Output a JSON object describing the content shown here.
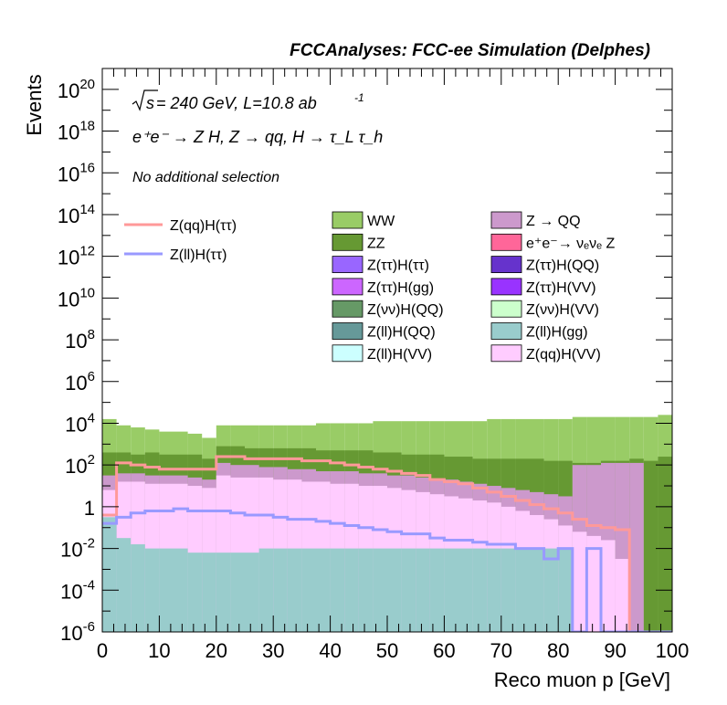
{
  "chart_data": {
    "type": "histogram",
    "title": "FCCAnalyses: FCC-ee Simulation (Delphes)",
    "xlabel": "Reco muon p [GeV]",
    "ylabel": "Events",
    "xlim": [
      0,
      100
    ],
    "ylim": [
      1e-06,
      1e+21
    ],
    "y_scale": "log",
    "bin_width": 2.5,
    "x_ticks": [
      "0",
      "10",
      "20",
      "30",
      "40",
      "50",
      "60",
      "70",
      "80",
      "90",
      "100"
    ],
    "y_ticks": [
      {
        "base": "10",
        "exp": "-6"
      },
      {
        "base": "10",
        "exp": "-4"
      },
      {
        "base": "10",
        "exp": "-2"
      },
      {
        "base": "1",
        "exp": ""
      },
      {
        "base": "10",
        "exp": "2"
      },
      {
        "base": "10",
        "exp": "4"
      },
      {
        "base": "10",
        "exp": "6"
      },
      {
        "base": "10",
        "exp": "8"
      },
      {
        "base": "10",
        "exp": "10"
      },
      {
        "base": "10",
        "exp": "12"
      },
      {
        "base": "10",
        "exp": "14"
      },
      {
        "base": "10",
        "exp": "16"
      },
      {
        "base": "10",
        "exp": "18"
      },
      {
        "base": "10",
        "exp": "20"
      }
    ],
    "annotations": {
      "energy_prefix": "s",
      "energy_text": " = 240 GeV, L=10.8 ab",
      "lumi_exp": "-1",
      "process": "e⁺e⁻ → Z H, Z → qq, H → τ_L τ_h",
      "selection": "No additional selection"
    },
    "legend_lines": [
      {
        "name": "Z(qq)H(ττ)",
        "color": "#ff9999"
      },
      {
        "name": "Z(ll)H(ττ)",
        "color": "#9999ff"
      }
    ],
    "legend_fills": [
      {
        "name": "WW",
        "color": "#99cc66"
      },
      {
        "name": "Z → QQ",
        "color": "#cc99cc"
      },
      {
        "name": "ZZ",
        "color": "#669933"
      },
      {
        "name": "e⁺e⁻→ νₑνₑ Z",
        "color": "#ff6699"
      },
      {
        "name": "Z(ττ)H(ττ)",
        "color": "#9966ff"
      },
      {
        "name": "Z(ττ)H(QQ)",
        "color": "#6633cc"
      },
      {
        "name": "Z(ττ)H(gg)",
        "color": "#cc66ff"
      },
      {
        "name": "Z(ττ)H(VV)",
        "color": "#9933ff"
      },
      {
        "name": "Z(νν)H(QQ)",
        "color": "#669966"
      },
      {
        "name": "Z(νν)H(VV)",
        "color": "#ccffcc"
      },
      {
        "name": "Z(ll)H(QQ)",
        "color": "#669999"
      },
      {
        "name": "Z(ll)H(gg)",
        "color": "#99cccc"
      },
      {
        "name": "Z(ll)H(VV)",
        "color": "#ccffff"
      },
      {
        "name": "Z(qq)H(VV)",
        "color": "#ffccff"
      }
    ],
    "stack_totals_log10": [
      [
        4.2,
        3.9,
        3.8,
        3.7,
        3.6,
        3.6,
        3.5,
        3.3,
        3.9,
        3.9,
        3.9,
        3.9,
        3.9,
        3.9,
        3.9,
        4.0,
        4.0,
        4.0,
        4.0,
        4.1,
        4.1,
        4.1,
        4.1,
        4.1,
        4.1,
        4.1,
        4.1,
        4.2,
        4.2,
        4.2,
        4.2,
        4.2,
        4.2,
        4.3,
        4.3,
        4.3,
        4.3,
        4.3,
        4.3,
        4.4
      ]
    ],
    "series_log10": [
      {
        "name": "WW",
        "values": [
          4.2,
          3.9,
          3.8,
          3.7,
          3.6,
          3.6,
          3.5,
          3.3,
          3.9,
          3.9,
          3.9,
          3.9,
          3.9,
          3.9,
          3.9,
          4.0,
          4.0,
          4.0,
          4.0,
          4.1,
          4.1,
          4.1,
          4.1,
          4.1,
          4.1,
          4.1,
          4.1,
          4.2,
          4.2,
          4.2,
          4.2,
          4.2,
          4.2,
          4.3,
          4.3,
          4.3,
          4.3,
          4.3,
          4.3,
          4.4
        ]
      },
      {
        "name": "ZZ",
        "values": [
          2.6,
          2.6,
          2.5,
          2.6,
          2.5,
          2.5,
          2.5,
          2.3,
          2.9,
          2.9,
          2.8,
          2.8,
          2.8,
          2.8,
          2.8,
          2.7,
          2.7,
          2.7,
          2.7,
          2.6,
          2.6,
          2.5,
          2.5,
          2.5,
          2.4,
          2.4,
          2.3,
          2.3,
          2.3,
          2.3,
          2.3,
          2.2,
          2.2,
          2.1,
          2.1,
          2.2,
          2.2,
          2.3,
          2.2,
          2.4
        ]
      },
      {
        "name": "Z → QQ",
        "values": [
          1.5,
          1.6,
          1.6,
          1.5,
          1.5,
          1.5,
          1.4,
          1.3,
          2.1,
          2.0,
          2.0,
          1.9,
          1.9,
          1.8,
          1.8,
          1.7,
          1.7,
          1.7,
          1.6,
          1.6,
          1.5,
          1.5,
          1.4,
          1.3,
          1.3,
          1.2,
          1.1,
          1.0,
          0.9,
          0.8,
          0.7,
          0.6,
          0.5,
          2.0,
          2.0,
          2.1,
          2.1,
          2.1,
          -6,
          -6
        ]
      },
      {
        "name": "Z(qq)H(VV)",
        "values": [
          0.8,
          1.2,
          1.2,
          1.1,
          1.1,
          1.1,
          1.0,
          0.9,
          1.5,
          1.4,
          1.4,
          1.4,
          1.3,
          1.3,
          1.2,
          1.2,
          1.1,
          1.1,
          1.0,
          1.0,
          0.9,
          0.8,
          0.7,
          0.6,
          0.5,
          0.4,
          0.3,
          0.2,
          0.0,
          -0.2,
          -0.4,
          -0.6,
          -0.9,
          -1.2,
          -1.4,
          -1.6,
          -2.5,
          -6,
          -6,
          -6
        ]
      },
      {
        "name": "Z(ll)H(gg)",
        "values": [
          -0.5,
          -1.5,
          -1.8,
          -2.0,
          -2.0,
          -2.0,
          -2.2,
          -2.2,
          -2.2,
          -2.2,
          -2.2,
          -2.0,
          -2.0,
          -2.0,
          -2.0,
          -2.0,
          -2.0,
          -2.0,
          -2.0,
          -2.0,
          -2.0,
          -2.0,
          -2.0,
          -2.0,
          -2.0,
          -2.0,
          -2.0,
          -2.0,
          -2.0,
          -2.0,
          -2.0,
          -2.0,
          -2.0,
          -6,
          -6,
          -6,
          -6,
          -6,
          -6,
          -6
        ]
      }
    ],
    "line_series_log10": [
      {
        "name": "Z(qq)H(ττ)",
        "color": "#ff9999",
        "values": [
          -0.4,
          2.1,
          2.0,
          1.9,
          1.8,
          1.8,
          1.8,
          1.8,
          2.4,
          2.4,
          2.3,
          2.3,
          2.3,
          2.3,
          2.2,
          2.2,
          2.1,
          2.0,
          1.9,
          1.8,
          1.7,
          1.6,
          1.5,
          1.3,
          1.2,
          1.1,
          0.9,
          0.7,
          0.5,
          0.3,
          0.1,
          -0.1,
          -0.3,
          -0.6,
          -0.9,
          -1.0,
          -1.1,
          -6,
          -6,
          -6
        ]
      },
      {
        "name": "Z(ll)H(ττ)",
        "color": "#9999ff",
        "values": [
          -0.8,
          -0.5,
          -0.3,
          -0.2,
          -0.2,
          -0.1,
          -0.2,
          -0.2,
          -0.2,
          -0.3,
          -0.4,
          -0.4,
          -0.5,
          -0.6,
          -0.6,
          -0.7,
          -0.8,
          -0.9,
          -1.0,
          -1.1,
          -1.2,
          -1.3,
          -1.3,
          -1.5,
          -1.6,
          -1.6,
          -1.7,
          -1.8,
          -1.8,
          -2.0,
          -2.0,
          -2.5,
          -2.0,
          -6,
          -2.0,
          -6,
          -6,
          -6,
          -6,
          -6
        ]
      }
    ]
  }
}
